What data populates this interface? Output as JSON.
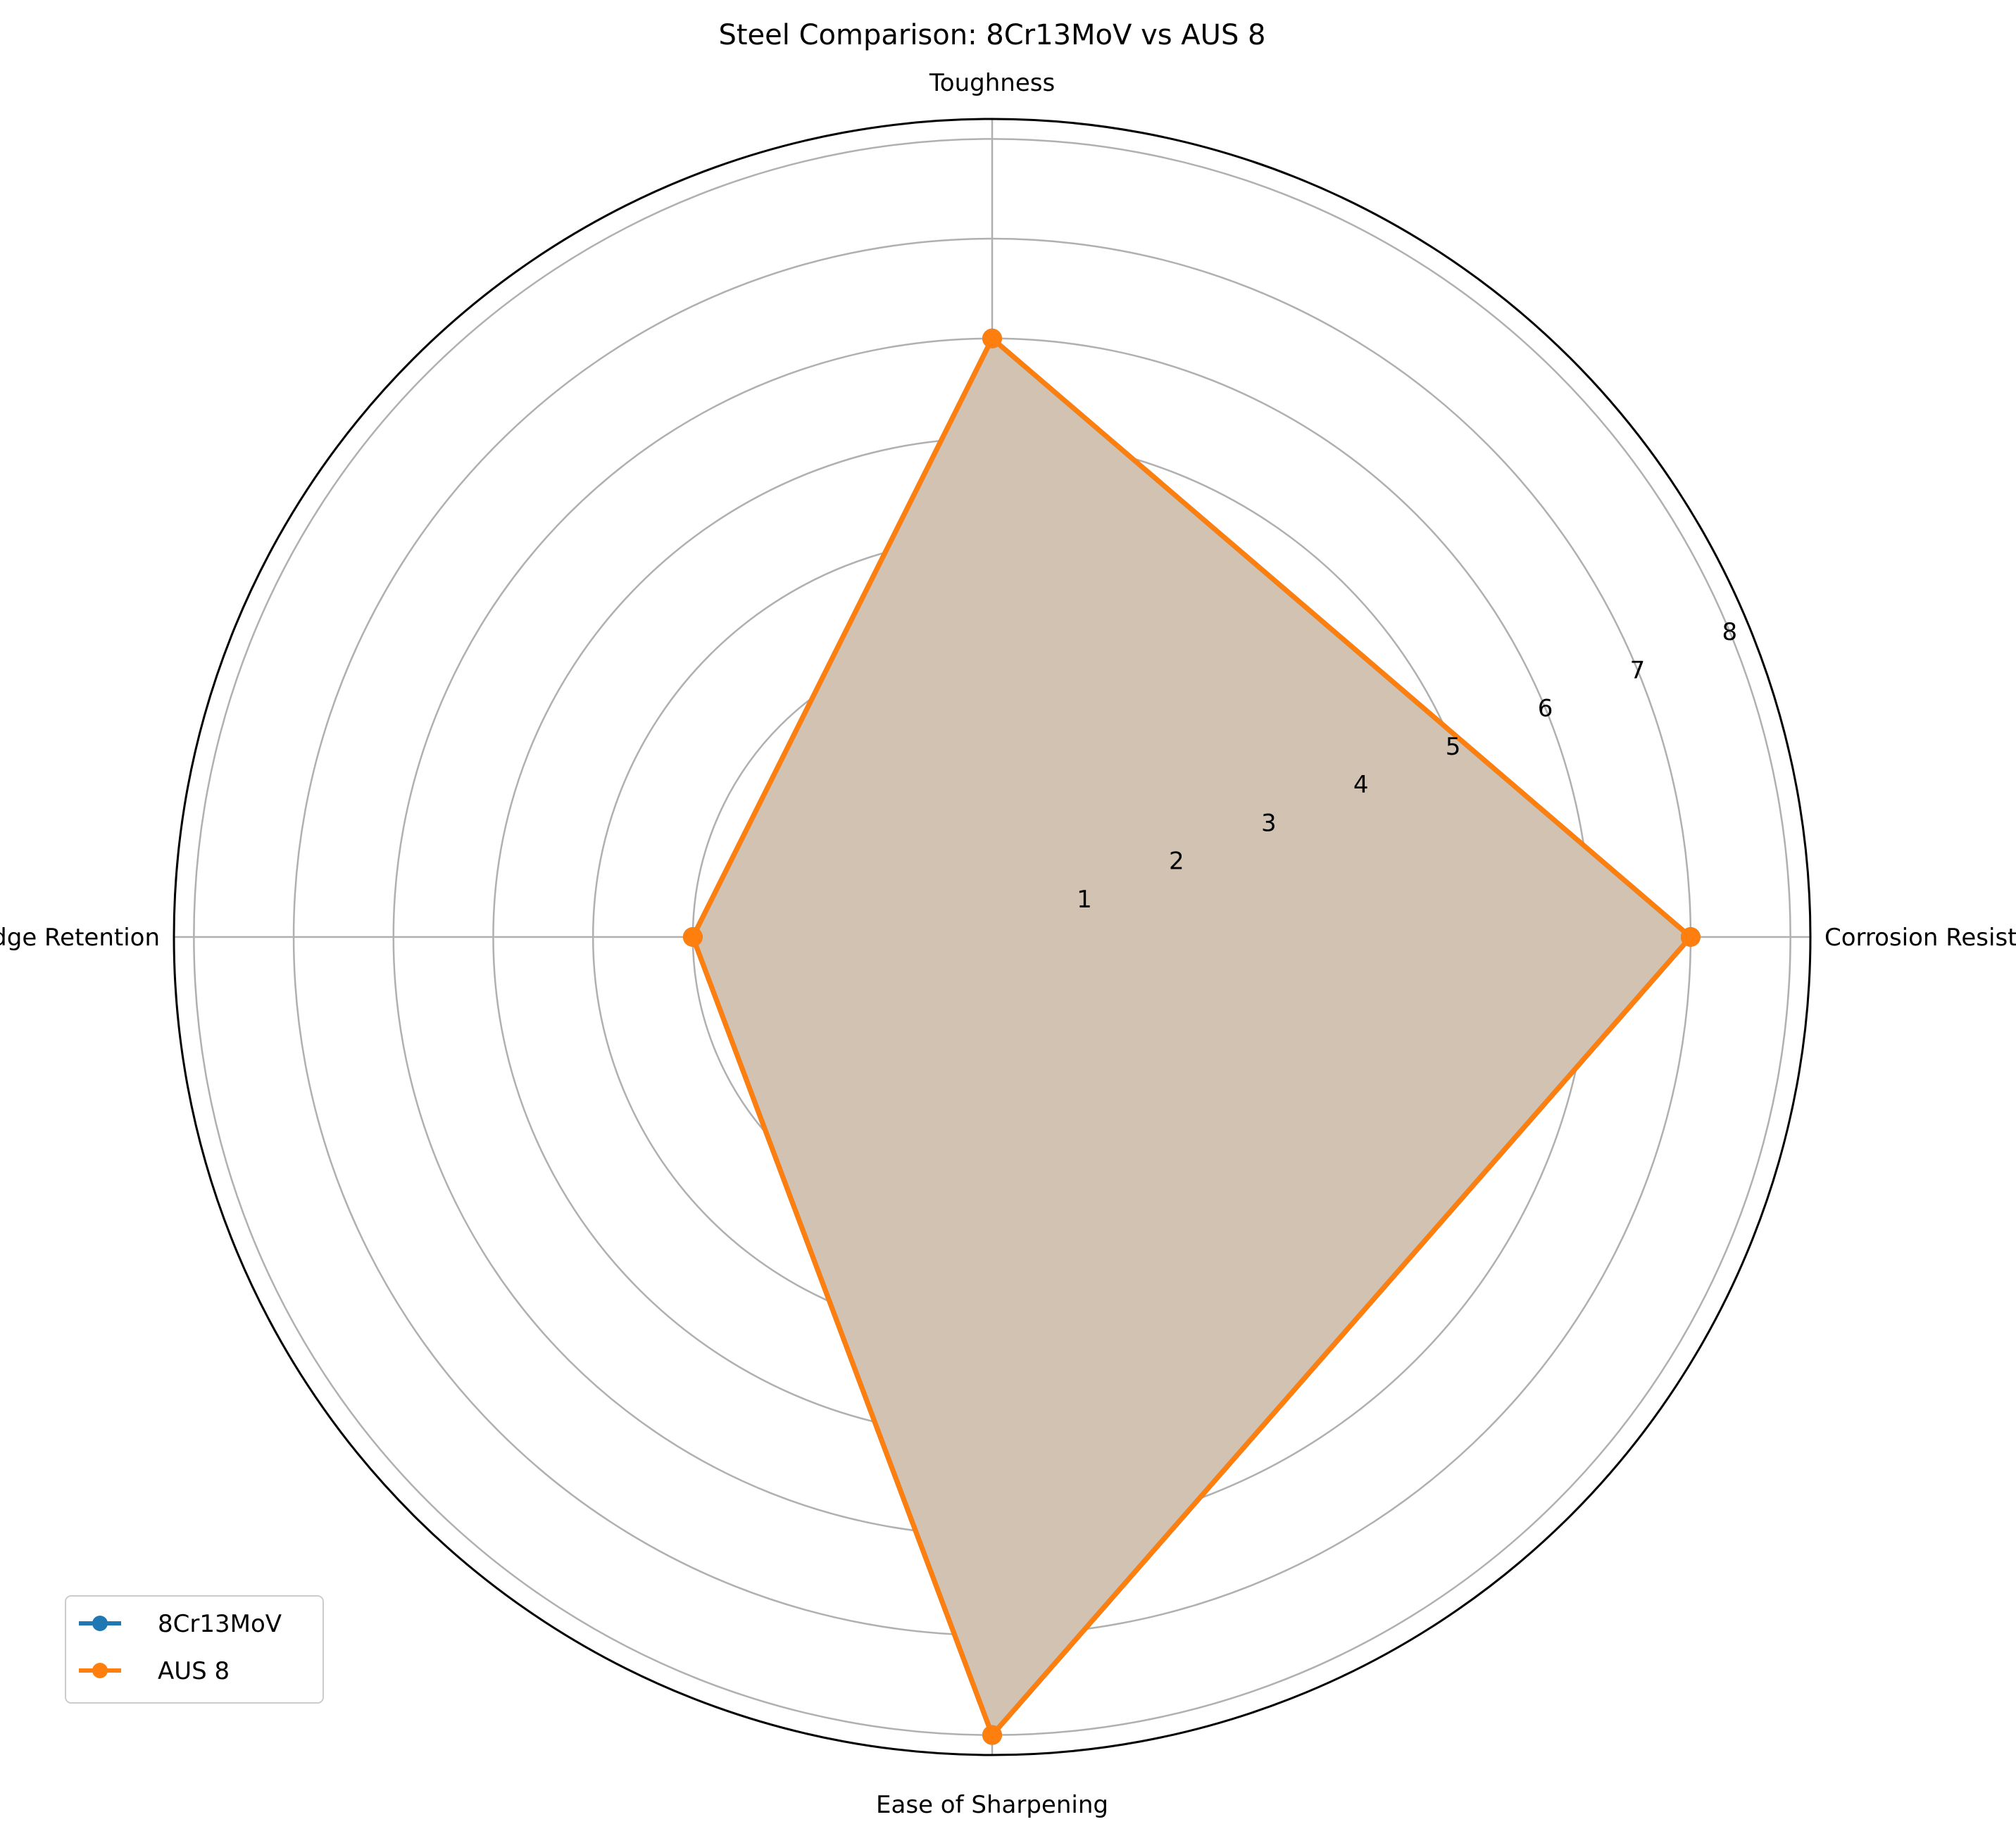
{
  "chart_data": {
    "type": "radar",
    "title": "Steel Comparison: 8Cr13MoV vs AUS 8",
    "categories": [
      "Corrosion Resistance",
      "Toughness",
      "Edge Retention",
      "Ease of Sharpening"
    ],
    "radial_ticks": [
      "1",
      "2",
      "3",
      "4",
      "5",
      "6",
      "7",
      "8"
    ],
    "rlim": [
      0,
      8.2
    ],
    "grid": true,
    "legend_position": "lower-left",
    "series": [
      {
        "name": "8Cr13MoV",
        "values": [
          7,
          6,
          3,
          8
        ],
        "color": "#1f77b4"
      },
      {
        "name": "AUS 8",
        "values": [
          7,
          6,
          3,
          8
        ],
        "color": "#ff7f0e"
      }
    ],
    "fill_color": "#d2c2b2"
  }
}
